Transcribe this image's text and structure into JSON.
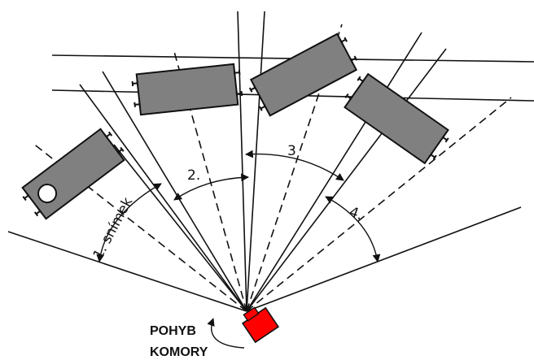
{
  "labels": {
    "shot1": "1. snímek",
    "shot2": "2.",
    "shot3": "3",
    "shot4": "4.",
    "motion_line1": "POHYB",
    "motion_line2": "KOMORY"
  },
  "colors": {
    "camera": "#ff0000",
    "car_body": "#808080",
    "line": "#111111",
    "background": "#ffffff"
  }
}
